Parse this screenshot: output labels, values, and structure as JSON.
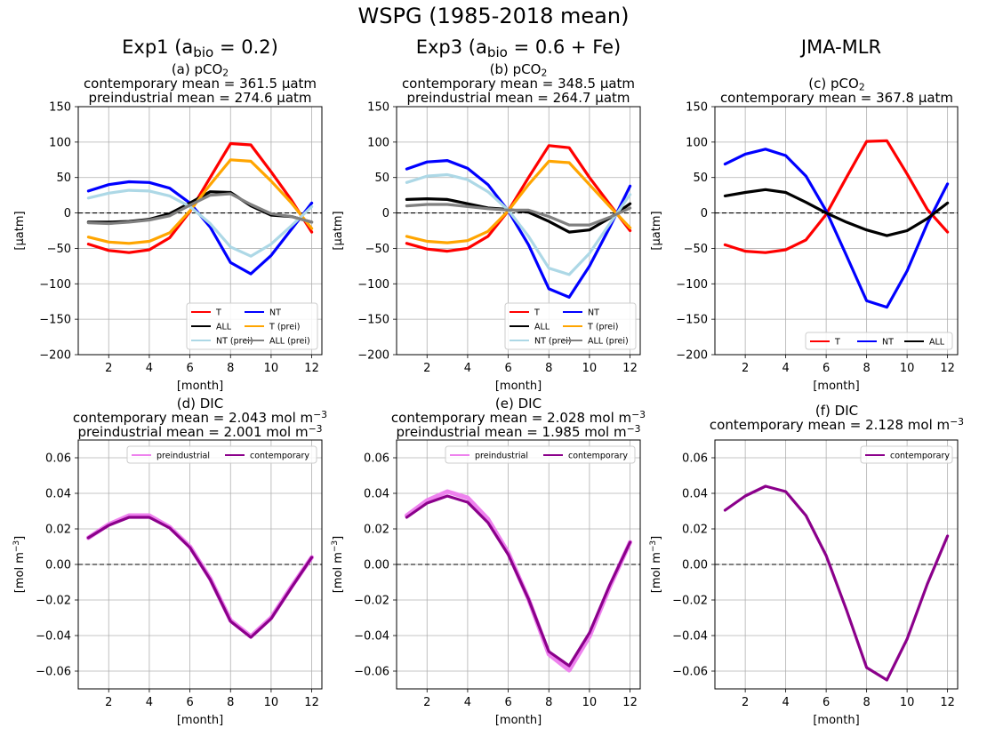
{
  "figure": {
    "title": "WSPG (1985-2018 mean)",
    "columns": [
      {
        "main": "Exp1 (a",
        "sub": "bio",
        "tail": " = 0.2)"
      },
      {
        "main": "Exp3 (a",
        "sub": "bio",
        "tail": " = 0.6 + Fe)"
      },
      {
        "main": "JMA-MLR",
        "sub": "",
        "tail": ""
      }
    ]
  },
  "colors": {
    "T": "#ff0000",
    "NT": "#0000ff",
    "ALL": "#000000",
    "T_prei": "#ffa500",
    "NT_prei": "#add8e6",
    "ALL_prei": "#808080",
    "dic_preindustrial": "#ee82ee",
    "dic_contemporary": "#8b008b"
  },
  "panels": [
    {
      "key": "a",
      "label": "(a) pCO",
      "label_sub": "2",
      "line2": "contemporary mean = 361.5 μatm",
      "line3": "preindustrial mean = 274.6 μatm"
    },
    {
      "key": "b",
      "label": "(b) pCO",
      "label_sub": "2",
      "line2": "contemporary mean = 348.5 μatm",
      "line3": "preindustrial mean = 264.7 μatm"
    },
    {
      "key": "c",
      "label": "(c) pCO",
      "label_sub": "2",
      "line2": "contemporary mean = 367.8 μatm",
      "line3": ""
    },
    {
      "key": "d",
      "label": "(d) DIC",
      "label_sub": "",
      "line2": "contemporary mean = 2.043 mol m",
      "line2_sup": "−3",
      "line3": "preindustrial mean = 2.001 mol m",
      "line3_sup": "−3"
    },
    {
      "key": "e",
      "label": "(e) DIC",
      "label_sub": "",
      "line2": "contemporary mean = 2.028 mol m",
      "line2_sup": "−3",
      "line3": "preindustrial mean = 1.985 mol m",
      "line3_sup": "−3"
    },
    {
      "key": "f",
      "label": "(f) DIC",
      "label_sub": "",
      "line2": "contemporary mean = 2.128 mol m",
      "line2_sup": "−3",
      "line3": ""
    }
  ],
  "chart_data": [
    {
      "type": "line",
      "panel": "a",
      "xlabel": "[month]",
      "ylabel": "[μatm]",
      "xlim": [
        0.5,
        12.5
      ],
      "ylim": [
        -200,
        150
      ],
      "grid": true,
      "legend": "bottom-right",
      "xticks": [
        2,
        4,
        6,
        8,
        10,
        12
      ],
      "yticks": [
        -200,
        -150,
        -100,
        -50,
        0,
        50,
        100,
        150
      ],
      "yticklabels": [
        "−200",
        "−150",
        "−100",
        "−50",
        "0",
        "50",
        "100",
        "150"
      ],
      "x": [
        1,
        2,
        3,
        4,
        5,
        6,
        7,
        8,
        9,
        10,
        11,
        12
      ],
      "series": [
        {
          "name": "T",
          "color": "#ff0000",
          "width": 3.2,
          "values": [
            -44,
            -53,
            -56,
            -52,
            -35,
            2,
            50,
            98,
            96,
            58,
            18,
            -27
          ]
        },
        {
          "name": "NT",
          "color": "#0000ff",
          "width": 3.2,
          "values": [
            31,
            40,
            44,
            43,
            35,
            14,
            -20,
            -70,
            -86,
            -60,
            -23,
            14
          ]
        },
        {
          "name": "ALL",
          "color": "#000000",
          "width": 3.2,
          "values": [
            -13,
            -13,
            -12,
            -9,
            -1,
            14,
            30,
            29,
            10,
            -3,
            -5,
            -13
          ]
        },
        {
          "name": "T (prei)",
          "color": "#ffa500",
          "width": 3.2,
          "values": [
            -34,
            -41,
            -43,
            -40,
            -28,
            3,
            40,
            75,
            73,
            45,
            14,
            -22
          ]
        },
        {
          "name": "NT (prei)",
          "color": "#add8e6",
          "width": 3.2,
          "values": [
            21,
            28,
            32,
            31,
            24,
            9,
            -15,
            -48,
            -61,
            -44,
            -18,
            9
          ]
        },
        {
          "name": "ALL (prei)",
          "color": "#808080",
          "width": 3.2,
          "values": [
            -14,
            -15,
            -13,
            -10,
            -4,
            11,
            25,
            27,
            12,
            -1,
            -5,
            -13
          ]
        }
      ]
    },
    {
      "type": "line",
      "panel": "b",
      "xlabel": "[month]",
      "ylabel": "[μatm]",
      "xlim": [
        0.5,
        12.5
      ],
      "ylim": [
        -200,
        150
      ],
      "grid": true,
      "legend": "bottom-right",
      "xticks": [
        2,
        4,
        6,
        8,
        10,
        12
      ],
      "yticks": [
        -200,
        -150,
        -100,
        -50,
        0,
        50,
        100,
        150
      ],
      "yticklabels": [
        "−200",
        "−150",
        "−100",
        "−50",
        "0",
        "50",
        "100",
        "150"
      ],
      "x": [
        1,
        2,
        3,
        4,
        5,
        6,
        7,
        8,
        9,
        10,
        11,
        12
      ],
      "series": [
        {
          "name": "T",
          "color": "#ff0000",
          "width": 3.2,
          "values": [
            -43,
            -51,
            -54,
            -50,
            -33,
            3,
            50,
            95,
            92,
            50,
            12,
            -25
          ]
        },
        {
          "name": "NT",
          "color": "#0000ff",
          "width": 3.2,
          "values": [
            62,
            72,
            74,
            63,
            40,
            3,
            -45,
            -107,
            -119,
            -75,
            -20,
            38
          ]
        },
        {
          "name": "ALL",
          "color": "#000000",
          "width": 3.2,
          "values": [
            19,
            20,
            19,
            13,
            7,
            5,
            1,
            -12,
            -27,
            -24,
            -7,
            13
          ]
        },
        {
          "name": "T (prei)",
          "color": "#ffa500",
          "width": 3.2,
          "values": [
            -33,
            -40,
            -42,
            -39,
            -26,
            3,
            40,
            73,
            71,
            40,
            9,
            -21
          ]
        },
        {
          "name": "NT (prei)",
          "color": "#add8e6",
          "width": 3.2,
          "values": [
            43,
            52,
            54,
            47,
            30,
            4,
            -33,
            -78,
            -87,
            -57,
            -15,
            26
          ]
        },
        {
          "name": "ALL (prei)",
          "color": "#808080",
          "width": 3.2,
          "values": [
            10,
            12,
            12,
            9,
            6,
            4,
            4,
            -5,
            -17,
            -17,
            -6,
            7
          ]
        }
      ]
    },
    {
      "type": "line",
      "panel": "c",
      "xlabel": "[month]",
      "ylabel": "[μatm]",
      "xlim": [
        0.5,
        12.5
      ],
      "ylim": [
        -200,
        150
      ],
      "grid": true,
      "legend": "bottom-right",
      "xticks": [
        2,
        4,
        6,
        8,
        10,
        12
      ],
      "yticks": [
        -200,
        -150,
        -100,
        -50,
        0,
        50,
        100,
        150
      ],
      "yticklabels": [
        "−200",
        "−150",
        "−100",
        "−50",
        "0",
        "50",
        "100",
        "150"
      ],
      "x": [
        1,
        2,
        3,
        4,
        5,
        6,
        7,
        8,
        9,
        10,
        11,
        12
      ],
      "series": [
        {
          "name": "T",
          "color": "#ff0000",
          "width": 3.2,
          "values": [
            -45,
            -54,
            -56,
            -52,
            -38,
            -2,
            50,
            101,
            102,
            55,
            5,
            -27
          ]
        },
        {
          "name": "NT",
          "color": "#0000ff",
          "width": 3.2,
          "values": [
            69,
            83,
            90,
            81,
            52,
            3,
            -60,
            -124,
            -133,
            -82,
            -15,
            41
          ]
        },
        {
          "name": "ALL",
          "color": "#000000",
          "width": 3.2,
          "values": [
            24,
            29,
            33,
            29,
            15,
            0,
            -13,
            -24,
            -32,
            -25,
            -8,
            14
          ]
        }
      ]
    },
    {
      "type": "line",
      "panel": "d",
      "xlabel": "[month]",
      "ylabel": "[mol m−3]",
      "xlim": [
        0.5,
        12.5
      ],
      "ylim": [
        -0.07,
        0.07
      ],
      "grid": true,
      "legend": "top-right",
      "xticks": [
        2,
        4,
        6,
        8,
        10,
        12
      ],
      "yticks": [
        -0.06,
        -0.04,
        -0.02,
        0,
        0.02,
        0.04,
        0.06
      ],
      "yticklabels": [
        "−0.06",
        "−0.04",
        "−0.02",
        "0.00",
        "0.02",
        "0.04",
        "0.06"
      ],
      "x": [
        1,
        2,
        3,
        4,
        5,
        6,
        7,
        8,
        9,
        10,
        11,
        12
      ],
      "series": [
        {
          "name": "preindustrial",
          "color": "#ee82ee",
          "width": 5,
          "values": [
            0.015,
            0.0225,
            0.0275,
            0.0275,
            0.021,
            0.01,
            -0.008,
            -0.0315,
            -0.0405,
            -0.03,
            -0.0125,
            0.004
          ]
        },
        {
          "name": "contemporary",
          "color": "#8b008b",
          "width": 3.2,
          "values": [
            0.015,
            0.022,
            0.0265,
            0.0265,
            0.0205,
            0.0095,
            -0.0085,
            -0.032,
            -0.041,
            -0.0305,
            -0.013,
            0.004
          ]
        }
      ]
    },
    {
      "type": "line",
      "panel": "e",
      "xlabel": "[month]",
      "ylabel": "[mol m−3]",
      "xlim": [
        0.5,
        12.5
      ],
      "ylim": [
        -0.07,
        0.07
      ],
      "grid": true,
      "legend": "top-right",
      "xticks": [
        2,
        4,
        6,
        8,
        10,
        12
      ],
      "yticks": [
        -0.06,
        -0.04,
        -0.02,
        0,
        0.02,
        0.04,
        0.06
      ],
      "yticklabels": [
        "−0.06",
        "−0.04",
        "−0.02",
        "0.00",
        "0.02",
        "0.04",
        "0.06"
      ],
      "x": [
        1,
        2,
        3,
        4,
        5,
        6,
        7,
        8,
        9,
        10,
        11,
        12
      ],
      "series": [
        {
          "name": "preindustrial",
          "color": "#ee82ee",
          "width": 5,
          "values": [
            0.0275,
            0.036,
            0.041,
            0.0375,
            0.0255,
            0.0065,
            -0.0195,
            -0.0505,
            -0.0595,
            -0.0405,
            -0.0125,
            0.0125
          ]
        },
        {
          "name": "contemporary",
          "color": "#8b008b",
          "width": 3.2,
          "values": [
            0.0265,
            0.0345,
            0.0385,
            0.035,
            0.0235,
            0.0055,
            -0.0195,
            -0.049,
            -0.057,
            -0.0385,
            -0.0115,
            0.0125
          ]
        }
      ]
    },
    {
      "type": "line",
      "panel": "f",
      "xlabel": "[month]",
      "ylabel": "[mol m−3]",
      "xlim": [
        0.5,
        12.5
      ],
      "ylim": [
        -0.07,
        0.07
      ],
      "grid": true,
      "legend": "top-right",
      "xticks": [
        2,
        4,
        6,
        8,
        10,
        12
      ],
      "yticks": [
        -0.06,
        -0.04,
        -0.02,
        0,
        0.02,
        0.04,
        0.06
      ],
      "yticklabels": [
        "−0.06",
        "−0.04",
        "−0.02",
        "0.00",
        "0.02",
        "0.04",
        "0.06"
      ],
      "x": [
        1,
        2,
        3,
        4,
        5,
        6,
        7,
        8,
        9,
        10,
        11,
        12
      ],
      "series": [
        {
          "name": "contemporary",
          "color": "#8b008b",
          "width": 3.2,
          "values": [
            0.0305,
            0.0385,
            0.044,
            0.041,
            0.0275,
            0.005,
            -0.0255,
            -0.058,
            -0.065,
            -0.042,
            -0.011,
            0.016
          ]
        }
      ]
    }
  ]
}
